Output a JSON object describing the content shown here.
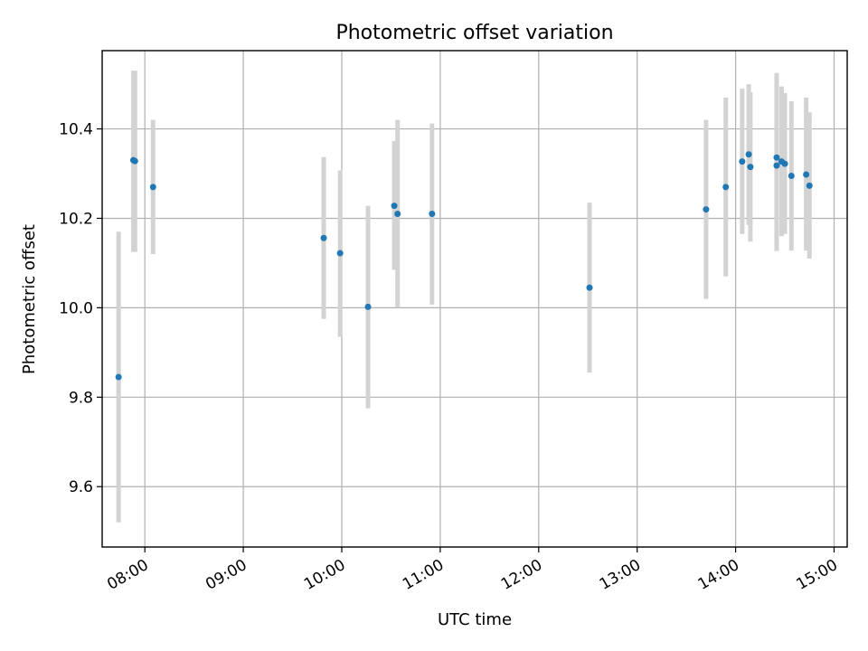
{
  "chart_data": {
    "type": "scatter",
    "title": "Photometric offset variation",
    "xlabel": "UTC time",
    "ylabel": "Photometric offset",
    "x_axis": "time (UTC, HH:MM)",
    "xlim": [
      "07:34",
      "15:08"
    ],
    "ylim": [
      9.465,
      10.575
    ],
    "x_ticks": [
      "08:00",
      "09:00",
      "10:00",
      "11:00",
      "12:00",
      "13:00",
      "14:00",
      "15:00"
    ],
    "y_ticks": [
      9.6,
      9.8,
      10.0,
      10.2,
      10.4
    ],
    "grid": true,
    "legend": "none",
    "marker_color": "#1f77b4",
    "errorbar_color": "#d3d3d3",
    "points": [
      {
        "t": "07:44",
        "y": 9.845,
        "lo": 9.52,
        "hi": 10.17
      },
      {
        "t": "07:53",
        "y": 10.33,
        "lo": 10.125,
        "hi": 10.53
      },
      {
        "t": "07:54",
        "y": 10.328,
        "lo": 10.125,
        "hi": 10.53
      },
      {
        "t": "08:05",
        "y": 10.27,
        "lo": 10.12,
        "hi": 10.42
      },
      {
        "t": "09:49",
        "y": 10.156,
        "lo": 9.975,
        "hi": 10.337
      },
      {
        "t": "09:59",
        "y": 10.122,
        "lo": 9.935,
        "hi": 10.307
      },
      {
        "t": "10:16",
        "y": 10.002,
        "lo": 9.775,
        "hi": 10.228
      },
      {
        "t": "10:32",
        "y": 10.228,
        "lo": 10.085,
        "hi": 10.373
      },
      {
        "t": "10:34",
        "y": 10.21,
        "lo": 10.0,
        "hi": 10.42
      },
      {
        "t": "10:55",
        "y": 10.21,
        "lo": 10.007,
        "hi": 10.412
      },
      {
        "t": "12:31",
        "y": 10.045,
        "lo": 9.855,
        "hi": 10.235
      },
      {
        "t": "13:42",
        "y": 10.22,
        "lo": 10.02,
        "hi": 10.42
      },
      {
        "t": "13:54",
        "y": 10.27,
        "lo": 10.07,
        "hi": 10.47
      },
      {
        "t": "14:04",
        "y": 10.327,
        "lo": 10.165,
        "hi": 10.49
      },
      {
        "t": "14:08",
        "y": 10.343,
        "lo": 10.185,
        "hi": 10.5
      },
      {
        "t": "14:09",
        "y": 10.315,
        "lo": 10.148,
        "hi": 10.482
      },
      {
        "t": "14:25",
        "y": 10.336,
        "lo": 10.145,
        "hi": 10.525
      },
      {
        "t": "14:25",
        "y": 10.318,
        "lo": 10.127,
        "hi": 10.512
      },
      {
        "t": "14:28",
        "y": 10.327,
        "lo": 10.16,
        "hi": 10.495
      },
      {
        "t": "14:30",
        "y": 10.322,
        "lo": 10.165,
        "hi": 10.48
      },
      {
        "t": "14:34",
        "y": 10.295,
        "lo": 10.128,
        "hi": 10.462
      },
      {
        "t": "14:43",
        "y": 10.298,
        "lo": 10.128,
        "hi": 10.47
      },
      {
        "t": "14:45",
        "y": 10.273,
        "lo": 10.11,
        "hi": 10.437
      }
    ]
  }
}
